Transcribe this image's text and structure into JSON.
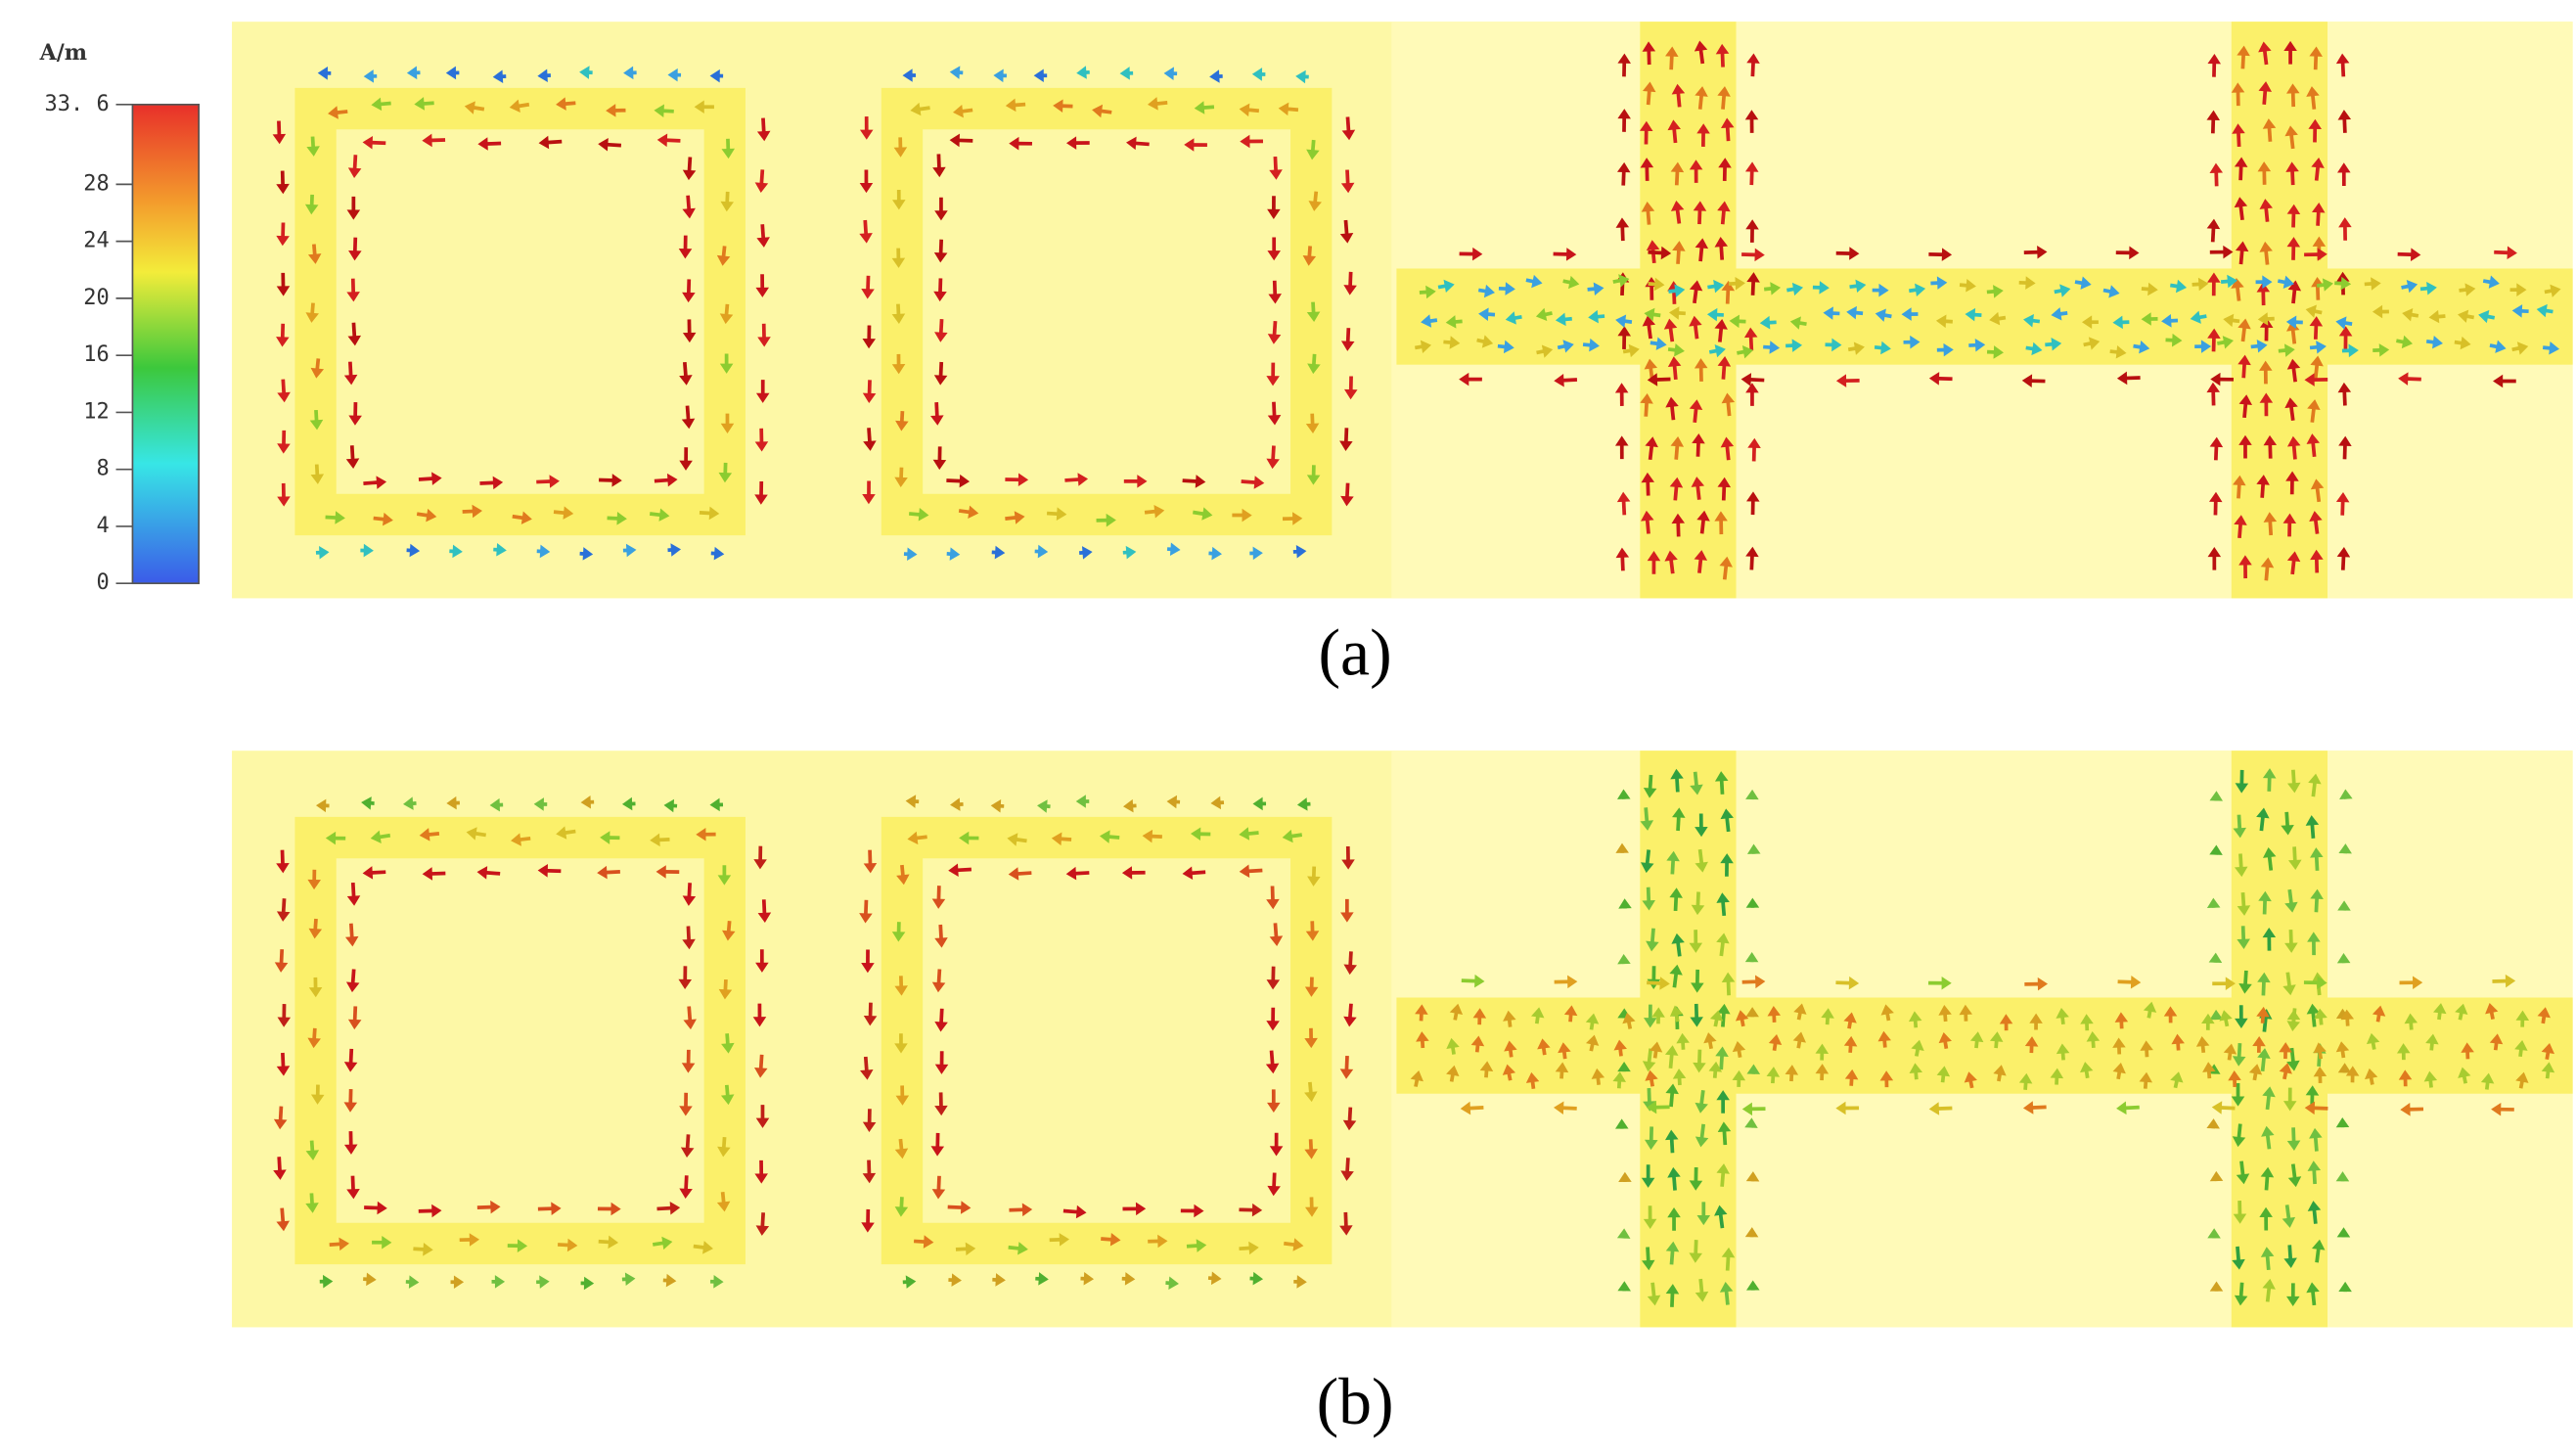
{
  "colorbar": {
    "unit": "A/m",
    "range": [
      0,
      33.6
    ],
    "ticks": [
      0,
      4,
      8,
      12,
      16,
      20,
      24,
      28,
      {
        "value": 33.6,
        "label": "33. 6"
      }
    ]
  },
  "panels": [
    {
      "caption": "(a)"
    },
    {
      "caption": "(b)"
    }
  ]
}
